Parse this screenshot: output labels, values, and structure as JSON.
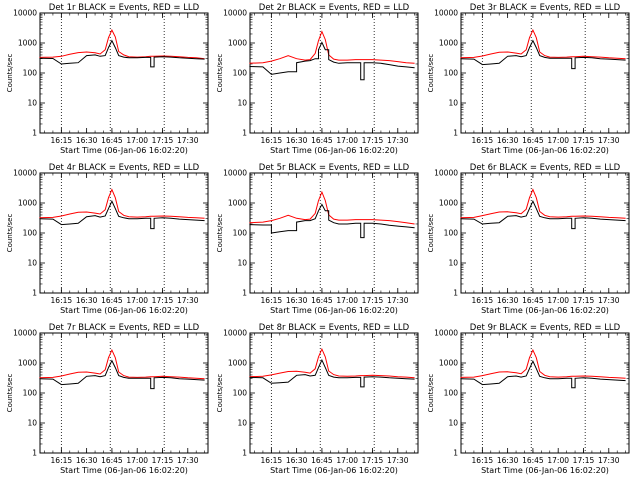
{
  "chart_data": {
    "type": "line",
    "y_scale": "log",
    "ylim": [
      1,
      10000
    ],
    "xlim": [
      "16:02:20",
      "17:42:00"
    ],
    "ylabel": "Counts/sec",
    "xlabel": "Start Time (06-Jan-06 16:02:20)",
    "x_ticks": [
      "16:15",
      "16:30",
      "16:45",
      "17:00",
      "17:15",
      "17:30"
    ],
    "y_ticks": [
      "1",
      "10",
      "100",
      "1000",
      "10000"
    ],
    "vlines": [
      "16:15",
      "16:44",
      "17:16"
    ],
    "colors": {
      "events": "#000000",
      "lld": "#ff0000"
    },
    "x_times": [
      "16:02",
      "16:10",
      "16:15",
      "16:20",
      "16:25",
      "16:30",
      "16:35",
      "16:38",
      "16:41",
      "16:43",
      "16:45",
      "16:47",
      "16:49",
      "16:52",
      "16:55",
      "17:00",
      "17:05",
      "17:08",
      "17:10",
      "17:15",
      "17:20",
      "17:25",
      "17:30",
      "17:35",
      "17:40"
    ],
    "panels": [
      {
        "title": "Det 1r BLACK = Events, RED = LLD",
        "events": [
          310,
          305,
          200,
          210,
          220,
          380,
          400,
          360,
          380,
          700,
          1200,
          700,
          380,
          340,
          320,
          320,
          330,
          160,
          340,
          350,
          340,
          320,
          310,
          300,
          290
        ],
        "lld": [
          330,
          340,
          360,
          420,
          480,
          500,
          470,
          430,
          600,
          1500,
          2700,
          1600,
          520,
          400,
          350,
          340,
          350,
          360,
          360,
          370,
          360,
          350,
          330,
          320,
          300
        ]
      },
      {
        "title": "Det 2r BLACK = Events, RED = LLD",
        "events": [
          165,
          160,
          90,
          100,
          110,
          220,
          250,
          260,
          300,
          600,
          1050,
          600,
          280,
          230,
          210,
          220,
          220,
          60,
          220,
          220,
          210,
          190,
          170,
          160,
          150
        ],
        "lld": [
          210,
          220,
          250,
          300,
          380,
          300,
          270,
          280,
          450,
          1200,
          2400,
          1300,
          400,
          290,
          270,
          270,
          280,
          280,
          280,
          280,
          270,
          260,
          240,
          220,
          210
        ]
      },
      {
        "title": "Det 3r BLACK = Events, RED = LLD",
        "events": [
          300,
          290,
          190,
          200,
          210,
          360,
          380,
          350,
          380,
          700,
          1200,
          700,
          380,
          330,
          310,
          310,
          310,
          140,
          320,
          330,
          320,
          300,
          290,
          280,
          270
        ],
        "lld": [
          320,
          330,
          370,
          430,
          490,
          500,
          460,
          430,
          600,
          1500,
          2700,
          1500,
          500,
          380,
          340,
          330,
          340,
          350,
          350,
          360,
          350,
          340,
          320,
          310,
          300
        ]
      },
      {
        "title": "Det 4r BLACK = Events, RED = LLD",
        "events": [
          300,
          290,
          190,
          200,
          210,
          350,
          380,
          340,
          370,
          650,
          1150,
          650,
          360,
          320,
          300,
          300,
          310,
          140,
          310,
          320,
          310,
          290,
          280,
          270,
          260
        ],
        "lld": [
          320,
          330,
          370,
          430,
          490,
          500,
          460,
          430,
          600,
          1500,
          2800,
          1500,
          520,
          390,
          350,
          340,
          350,
          360,
          360,
          370,
          360,
          350,
          330,
          320,
          310
        ]
      },
      {
        "title": "Det 5r BLACK = Events, RED = LLD",
        "events": [
          190,
          185,
          100,
          110,
          120,
          230,
          260,
          260,
          300,
          550,
          900,
          550,
          270,
          220,
          200,
          200,
          210,
          70,
          210,
          210,
          200,
          180,
          170,
          160,
          150
        ],
        "lld": [
          220,
          230,
          260,
          310,
          390,
          310,
          280,
          290,
          450,
          1200,
          2300,
          1200,
          400,
          290,
          270,
          270,
          280,
          280,
          280,
          280,
          270,
          260,
          240,
          220,
          200
        ]
      },
      {
        "title": "Det 6r BLACK = Events, RED = LLD",
        "events": [
          300,
          290,
          200,
          210,
          220,
          360,
          380,
          340,
          370,
          650,
          1150,
          650,
          360,
          320,
          300,
          300,
          310,
          140,
          310,
          320,
          310,
          290,
          280,
          270,
          260
        ],
        "lld": [
          320,
          330,
          380,
          440,
          500,
          510,
          470,
          440,
          620,
          1500,
          2800,
          1500,
          520,
          390,
          350,
          340,
          350,
          360,
          360,
          370,
          360,
          350,
          330,
          320,
          310
        ]
      },
      {
        "title": "Det 7r BLACK = Events, RED = LLD",
        "events": [
          300,
          290,
          190,
          200,
          210,
          360,
          380,
          350,
          380,
          700,
          1200,
          700,
          380,
          330,
          310,
          310,
          310,
          140,
          320,
          330,
          320,
          300,
          290,
          280,
          270
        ],
        "lld": [
          320,
          330,
          370,
          430,
          490,
          500,
          460,
          430,
          600,
          1500,
          2700,
          1500,
          500,
          380,
          340,
          330,
          340,
          350,
          350,
          360,
          350,
          340,
          320,
          310,
          300
        ]
      },
      {
        "title": "Det 8r BLACK = Events, RED = LLD",
        "events": [
          330,
          320,
          210,
          220,
          230,
          390,
          410,
          370,
          390,
          700,
          1250,
          700,
          390,
          340,
          320,
          320,
          330,
          160,
          340,
          350,
          340,
          320,
          310,
          300,
          290
        ],
        "lld": [
          350,
          360,
          400,
          460,
          520,
          530,
          490,
          460,
          640,
          1600,
          2900,
          1600,
          540,
          410,
          370,
          360,
          370,
          380,
          380,
          390,
          380,
          370,
          350,
          340,
          320
        ]
      },
      {
        "title": "Det 9r BLACK = Events, RED = LLD",
        "events": [
          300,
          290,
          190,
          200,
          210,
          350,
          370,
          340,
          370,
          650,
          1150,
          650,
          360,
          320,
          300,
          300,
          310,
          150,
          310,
          320,
          310,
          290,
          280,
          270,
          260
        ],
        "lld": [
          330,
          340,
          380,
          440,
          500,
          510,
          470,
          440,
          620,
          1500,
          2700,
          1500,
          520,
          390,
          350,
          340,
          350,
          360,
          360,
          370,
          360,
          350,
          330,
          320,
          310
        ]
      }
    ]
  }
}
